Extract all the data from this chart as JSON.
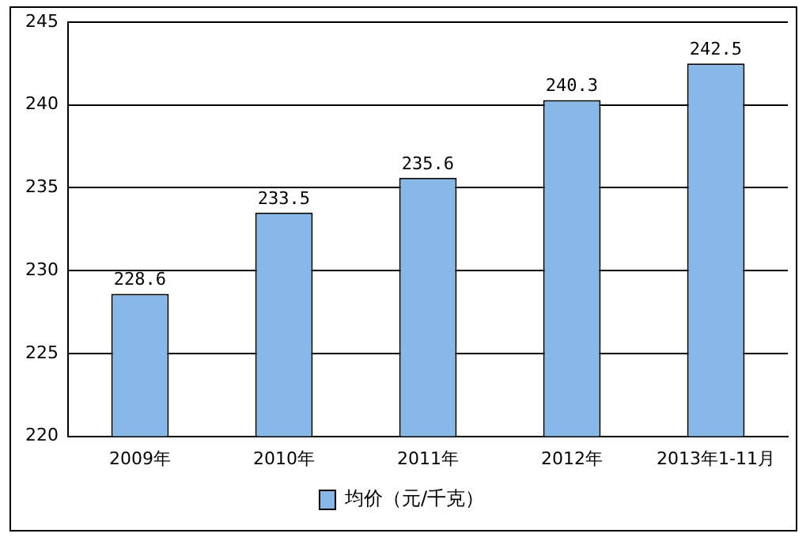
{
  "chart_data": {
    "type": "bar",
    "categories": [
      "2009年",
      "2010年",
      "2011年",
      "2012年",
      "2013年1-11月"
    ],
    "series": [
      {
        "name": "均价（元/千克）",
        "color": "#88b8e8",
        "values": [
          228.6,
          233.5,
          235.6,
          240.3,
          242.5
        ]
      }
    ],
    "ylim": [
      220,
      245
    ],
    "yticks": [
      220,
      225,
      230,
      235,
      240,
      245
    ],
    "grid": "y",
    "legend": "bottom",
    "data_labels": true
  }
}
